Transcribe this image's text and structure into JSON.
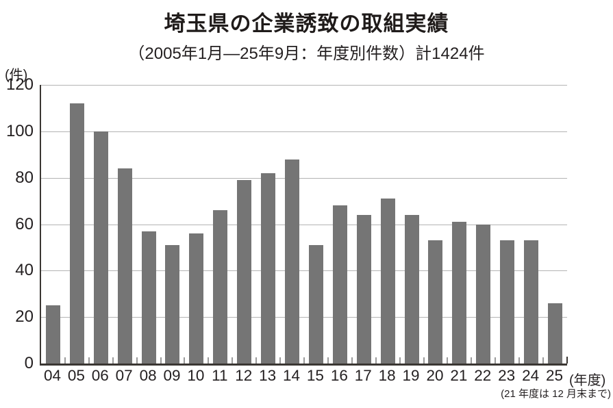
{
  "title": "埼玉県の企業誘致の取組実績",
  "subtitle": "（2005年1月—25年9月：年度別件数）計1424件",
  "y_axis_unit": "(件)",
  "x_axis_suffix": "(年度)",
  "footnote": "(21 年度は 12 月末まで)",
  "colors": {
    "bar": "#757575",
    "axis": "#3a3632",
    "grid": "#b3b3b3",
    "text": "#231f20"
  },
  "chart_data": {
    "type": "bar",
    "title": "埼玉県の企業誘致の取組実績",
    "subtitle": "（2005年1月—25年9月：年度別件数）計1424件",
    "categories": [
      "04",
      "05",
      "06",
      "07",
      "08",
      "09",
      "10",
      "11",
      "12",
      "13",
      "14",
      "15",
      "16",
      "17",
      "18",
      "19",
      "20",
      "21",
      "22",
      "23",
      "24",
      "25"
    ],
    "values": [
      25,
      112,
      100,
      84,
      57,
      51,
      56,
      66,
      79,
      82,
      88,
      51,
      68,
      64,
      71,
      64,
      53,
      61,
      60,
      53,
      53,
      26
    ],
    "total": 1424,
    "xlabel": "(年度)",
    "ylabel": "(件)",
    "ylim": [
      0,
      120
    ],
    "yticks": [
      0,
      20,
      40,
      60,
      80,
      100,
      120
    ],
    "grid": true,
    "legend": false,
    "bar_color": "#757575"
  }
}
